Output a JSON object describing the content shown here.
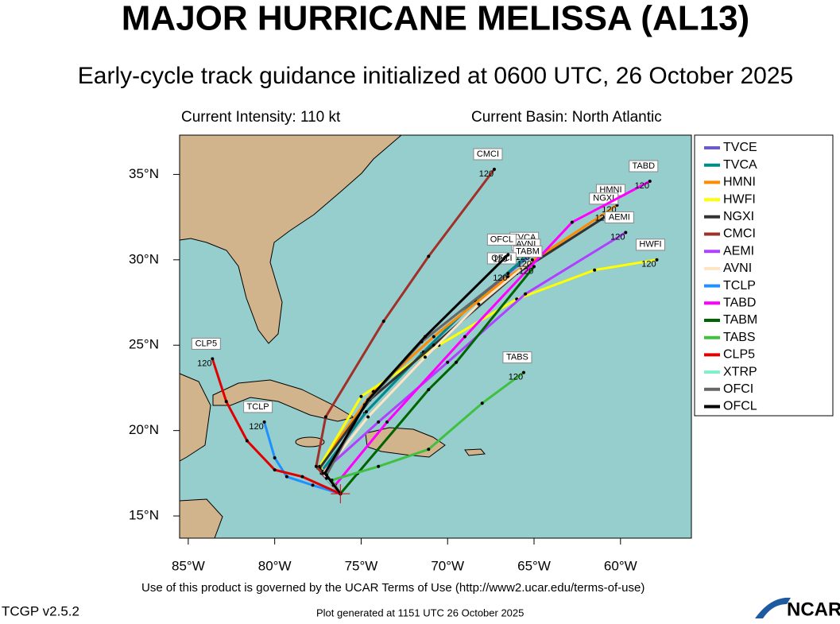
{
  "chart_data": {
    "type": "line",
    "title": "MAJOR HURRICANE MELISSA (AL13)",
    "subtitle": "Early-cycle track guidance initialized at 0600 UTC, 26 October 2025",
    "intensity": "Current Intensity: 110 kt",
    "basin": "Current Basin: North Atlantic",
    "terms": "Use of this product is governed by the UCAR Terms of Use (http://www2.ucar.edu/terms-of-use)",
    "version": "TCGP v2.5.2",
    "generated": "Plot generated at 1151 UTC   26 October 2025",
    "logo": "NCAR",
    "xlim": [
      -85.5,
      -55.9
    ],
    "ylim": [
      13.7,
      37.3
    ],
    "xticks": [
      {
        "value": -85,
        "label": "85°W"
      },
      {
        "value": -80,
        "label": "80°W"
      },
      {
        "value": -75,
        "label": "75°W"
      },
      {
        "value": -70,
        "label": "70°W"
      },
      {
        "value": -65,
        "label": "65°W"
      },
      {
        "value": -60,
        "label": "60°W"
      }
    ],
    "yticks": [
      {
        "value": 15,
        "label": "15°N"
      },
      {
        "value": 20,
        "label": "20°N"
      },
      {
        "value": 25,
        "label": "25°N"
      },
      {
        "value": 30,
        "label": "30°N"
      },
      {
        "value": 35,
        "label": "35°N"
      }
    ],
    "series": [
      {
        "name": "TVCE",
        "color": "#6a5acd",
        "x": [
          -76.2,
          -77.3,
          -74.8,
          -71.5,
          -68.5,
          -65.3
        ],
        "values": [
          16.3,
          17.5,
          21.0,
          24.5,
          27.5,
          30.2
        ]
      },
      {
        "name": "TVCA",
        "color": "#008b8b",
        "x": [
          -76.2,
          -77.3,
          -74.7,
          -71.4,
          -68.4,
          -65.2
        ],
        "values": [
          16.3,
          17.6,
          21.1,
          24.6,
          27.6,
          30.4
        ],
        "end_hour": 120
      },
      {
        "name": "HMNI",
        "color": "#ff8c00",
        "x": [
          -76.2,
          -77.5,
          -74.3,
          -70.8,
          -66.5,
          -60.2
        ],
        "values": [
          16.3,
          17.8,
          22.3,
          25.5,
          29.0,
          33.2
        ],
        "end_hour": 120
      },
      {
        "name": "HWFI",
        "color": "#ffff00",
        "x": [
          -76.2,
          -77.4,
          -75.0,
          -70.5,
          -66.0,
          -61.5,
          -57.9
        ],
        "values": [
          16.3,
          17.9,
          22.0,
          25.0,
          27.7,
          29.4,
          30.0
        ],
        "end_hour": 120
      },
      {
        "name": "NGXI",
        "color": "#333333",
        "x": [
          -76.2,
          -77.4,
          -74.5,
          -70.8,
          -66.0,
          -60.6
        ],
        "values": [
          16.3,
          17.8,
          21.8,
          25.0,
          29.2,
          32.7
        ],
        "end_hour": 120
      },
      {
        "name": "CMCI",
        "color": "#a03028",
        "x": [
          -76.2,
          -77.6,
          -77.05,
          -73.7,
          -71.1,
          -67.3
        ],
        "values": [
          16.3,
          17.9,
          20.8,
          26.4,
          30.2,
          35.3
        ],
        "end_hour": 120
      },
      {
        "name": "AEMI",
        "color": "#b040ff",
        "x": [
          -76.2,
          -77.2,
          -74.0,
          -70.0,
          -65.5,
          -59.7
        ],
        "values": [
          16.3,
          17.6,
          20.5,
          24.0,
          28.0,
          31.6
        ],
        "end_hour": 120
      },
      {
        "name": "AVNI",
        "color": "#ffe4c4",
        "x": [
          -76.2,
          -77.2,
          -74.6,
          -71.3,
          -68.2,
          -65.1
        ],
        "values": [
          16.3,
          17.5,
          20.8,
          24.3,
          27.4,
          30.0
        ],
        "end_hour": 120
      },
      {
        "name": "TCLP",
        "color": "#1e90ff",
        "x": [
          -76.2,
          -77.8,
          -79.3,
          -80.0,
          -80.6
        ],
        "values": [
          16.3,
          16.8,
          17.3,
          18.4,
          20.5
        ],
        "end_hour": 120
      },
      {
        "name": "TABD",
        "color": "#ff00ff",
        "x": [
          -76.2,
          -76.5,
          -73.5,
          -69.0,
          -62.8,
          -58.3
        ],
        "values": [
          16.3,
          16.8,
          20.5,
          25.5,
          32.2,
          34.6
        ],
        "end_hour": 120
      },
      {
        "name": "TABM",
        "color": "#006400",
        "x": [
          -76.2,
          -75.2,
          -71.1,
          -69.5,
          -65.0
        ],
        "values": [
          16.3,
          17.5,
          22.4,
          24.0,
          29.6
        ],
        "end_hour": 120
      },
      {
        "name": "TABS",
        "color": "#40c040",
        "x": [
          -76.2,
          -76.7,
          -74.0,
          -71.1,
          -68.0,
          -65.6
        ],
        "values": [
          16.3,
          17.1,
          17.9,
          18.9,
          21.6,
          23.4
        ],
        "end_hour": 120
      },
      {
        "name": "CLP5",
        "color": "#e00000",
        "x": [
          -76.2,
          -78.4,
          -80.0,
          -81.6,
          -82.8,
          -83.6
        ],
        "values": [
          16.3,
          17.3,
          17.7,
          19.4,
          21.7,
          24.2
        ],
        "end_hour": 120
      },
      {
        "name": "XTRP",
        "color": "#80f0c8",
        "x": [
          -76.2,
          -76.6,
          -77.0
        ],
        "values": [
          16.3,
          16.8,
          17.2
        ]
      },
      {
        "name": "OFCI",
        "color": "#666666",
        "x": [
          -76.2,
          -77.0,
          -74.8,
          -71.5,
          -66.5
        ],
        "values": [
          16.3,
          17.4,
          21.5,
          25.2,
          29.2
        ],
        "end_hour": 120
      },
      {
        "name": "OFCL",
        "color": "#000000",
        "x": [
          -76.2,
          -77.1,
          -74.6,
          -71.3,
          -66.5
        ],
        "values": [
          16.3,
          17.5,
          21.8,
          25.5,
          30.3
        ],
        "end_hour": 120
      }
    ]
  }
}
